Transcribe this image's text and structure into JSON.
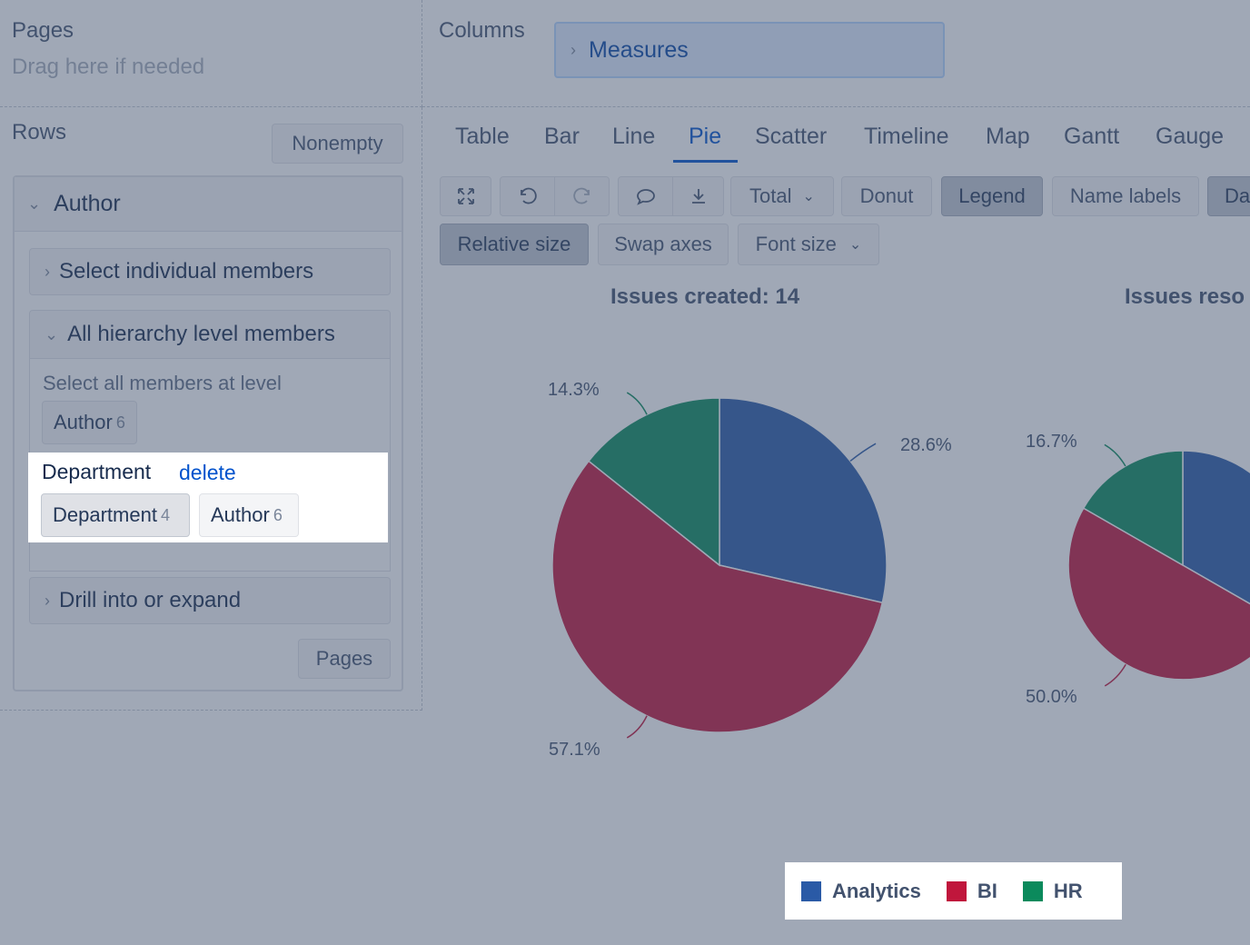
{
  "pages": {
    "title": "Pages",
    "hint": "Drag here if needed"
  },
  "columns": {
    "title": "Columns",
    "measures_label": "Measures"
  },
  "rows": {
    "title": "Rows",
    "nonempty_label": "Nonempty",
    "dimension": {
      "label": "Author",
      "select_individual": "Select individual members",
      "all_hierarchy": "All hierarchy level members",
      "select_all_text": "Select all members at level",
      "author_level": {
        "label": "Author",
        "count": "6"
      },
      "department_title": "Department",
      "delete_label": "delete",
      "department_level": {
        "label": "Department",
        "count": "4"
      },
      "author_level_2": {
        "label": "Author",
        "count": "6"
      },
      "drill_label": "Drill into or expand",
      "pages_button": "Pages"
    }
  },
  "tabs": [
    {
      "label": "Table"
    },
    {
      "label": "Bar"
    },
    {
      "label": "Line"
    },
    {
      "label": "Pie",
      "active": true
    },
    {
      "label": "Scatter"
    },
    {
      "label": "Timeline"
    },
    {
      "label": "Map"
    },
    {
      "label": "Gantt"
    },
    {
      "label": "Gauge"
    }
  ],
  "toolbar": {
    "icons": [
      "fullscreen-icon",
      "undo-icon",
      "redo-icon",
      "comment-icon",
      "download-icon"
    ],
    "total_label": "Total",
    "donut_label": "Donut",
    "legend_label": "Legend",
    "name_labels_label": "Name labels",
    "data_labels_label": "Da",
    "relative_size_label": "Relative size",
    "swap_axes_label": "Swap axes",
    "font_size_label": "Font size"
  },
  "colors": {
    "analytics": "#2a5aa6",
    "bi": "#c0163c",
    "hr": "#0b8a5c",
    "active_tab": "#0052cc"
  },
  "chart_data": [
    {
      "type": "pie",
      "title": "Issues created: 14",
      "slices": [
        {
          "name": "Analytics",
          "value": 28.6,
          "label": "28.6%"
        },
        {
          "name": "BI",
          "value": 57.1,
          "label": "57.1%"
        },
        {
          "name": "HR",
          "value": 14.3,
          "label": "14.3%"
        }
      ],
      "legend": "bottom"
    },
    {
      "type": "pie",
      "title": "Issues reso",
      "slices": [
        {
          "name": "Analytics",
          "value": 33.3
        },
        {
          "name": "BI",
          "value": 50.0,
          "label": "50.0%"
        },
        {
          "name": "HR",
          "value": 16.7,
          "label": "16.7%"
        }
      ]
    }
  ],
  "legend": {
    "items": [
      {
        "label": "Analytics"
      },
      {
        "label": "BI"
      },
      {
        "label": "HR"
      }
    ]
  }
}
